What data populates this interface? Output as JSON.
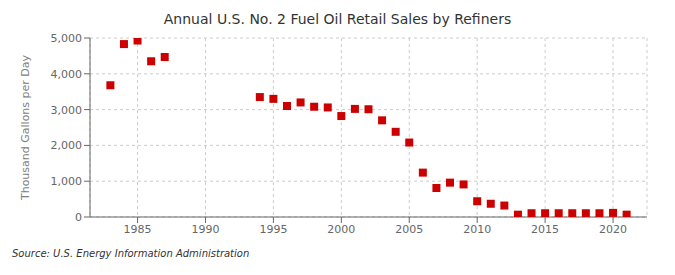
{
  "chart_data": {
    "type": "scatter",
    "title": "Annual U.S. No. 2 Fuel Oil Retail Sales by Refiners",
    "ylabel": "Thousand Gallons per Day",
    "source": "Source: U.S. Energy Information Administration",
    "x": [
      1983,
      1984,
      1985,
      1986,
      1987,
      1994,
      1995,
      1996,
      1997,
      1998,
      1999,
      2000,
      2001,
      2002,
      2003,
      2004,
      2005,
      2006,
      2007,
      2008,
      2009,
      2010,
      2011,
      2012,
      2013,
      2014,
      2015,
      2016,
      2017,
      2018,
      2019,
      2020,
      2021
    ],
    "values": [
      3680,
      4830,
      4930,
      4350,
      4470,
      3350,
      3300,
      3100,
      3200,
      3080,
      3060,
      2820,
      3020,
      3010,
      2700,
      2380,
      2080,
      1240,
      810,
      960,
      910,
      440,
      370,
      320,
      65,
      105,
      105,
      105,
      105,
      105,
      105,
      115,
      65
    ],
    "color": "#cc0000",
    "marker": "square",
    "xlim": [
      1981.5,
      2022.5
    ],
    "xticks": [
      1985,
      1990,
      1995,
      2000,
      2005,
      2010,
      2015,
      2020
    ],
    "ylim": [
      0,
      5000
    ],
    "yticks": [
      0,
      {
        "value": 1000,
        "label": "1,000"
      },
      {
        "value": 2000,
        "label": "2,000"
      },
      {
        "value": 3000,
        "label": "3,000"
      },
      {
        "value": 4000,
        "label": "4,000"
      },
      {
        "value": 5000,
        "label": "5,000"
      }
    ],
    "grid": true
  }
}
